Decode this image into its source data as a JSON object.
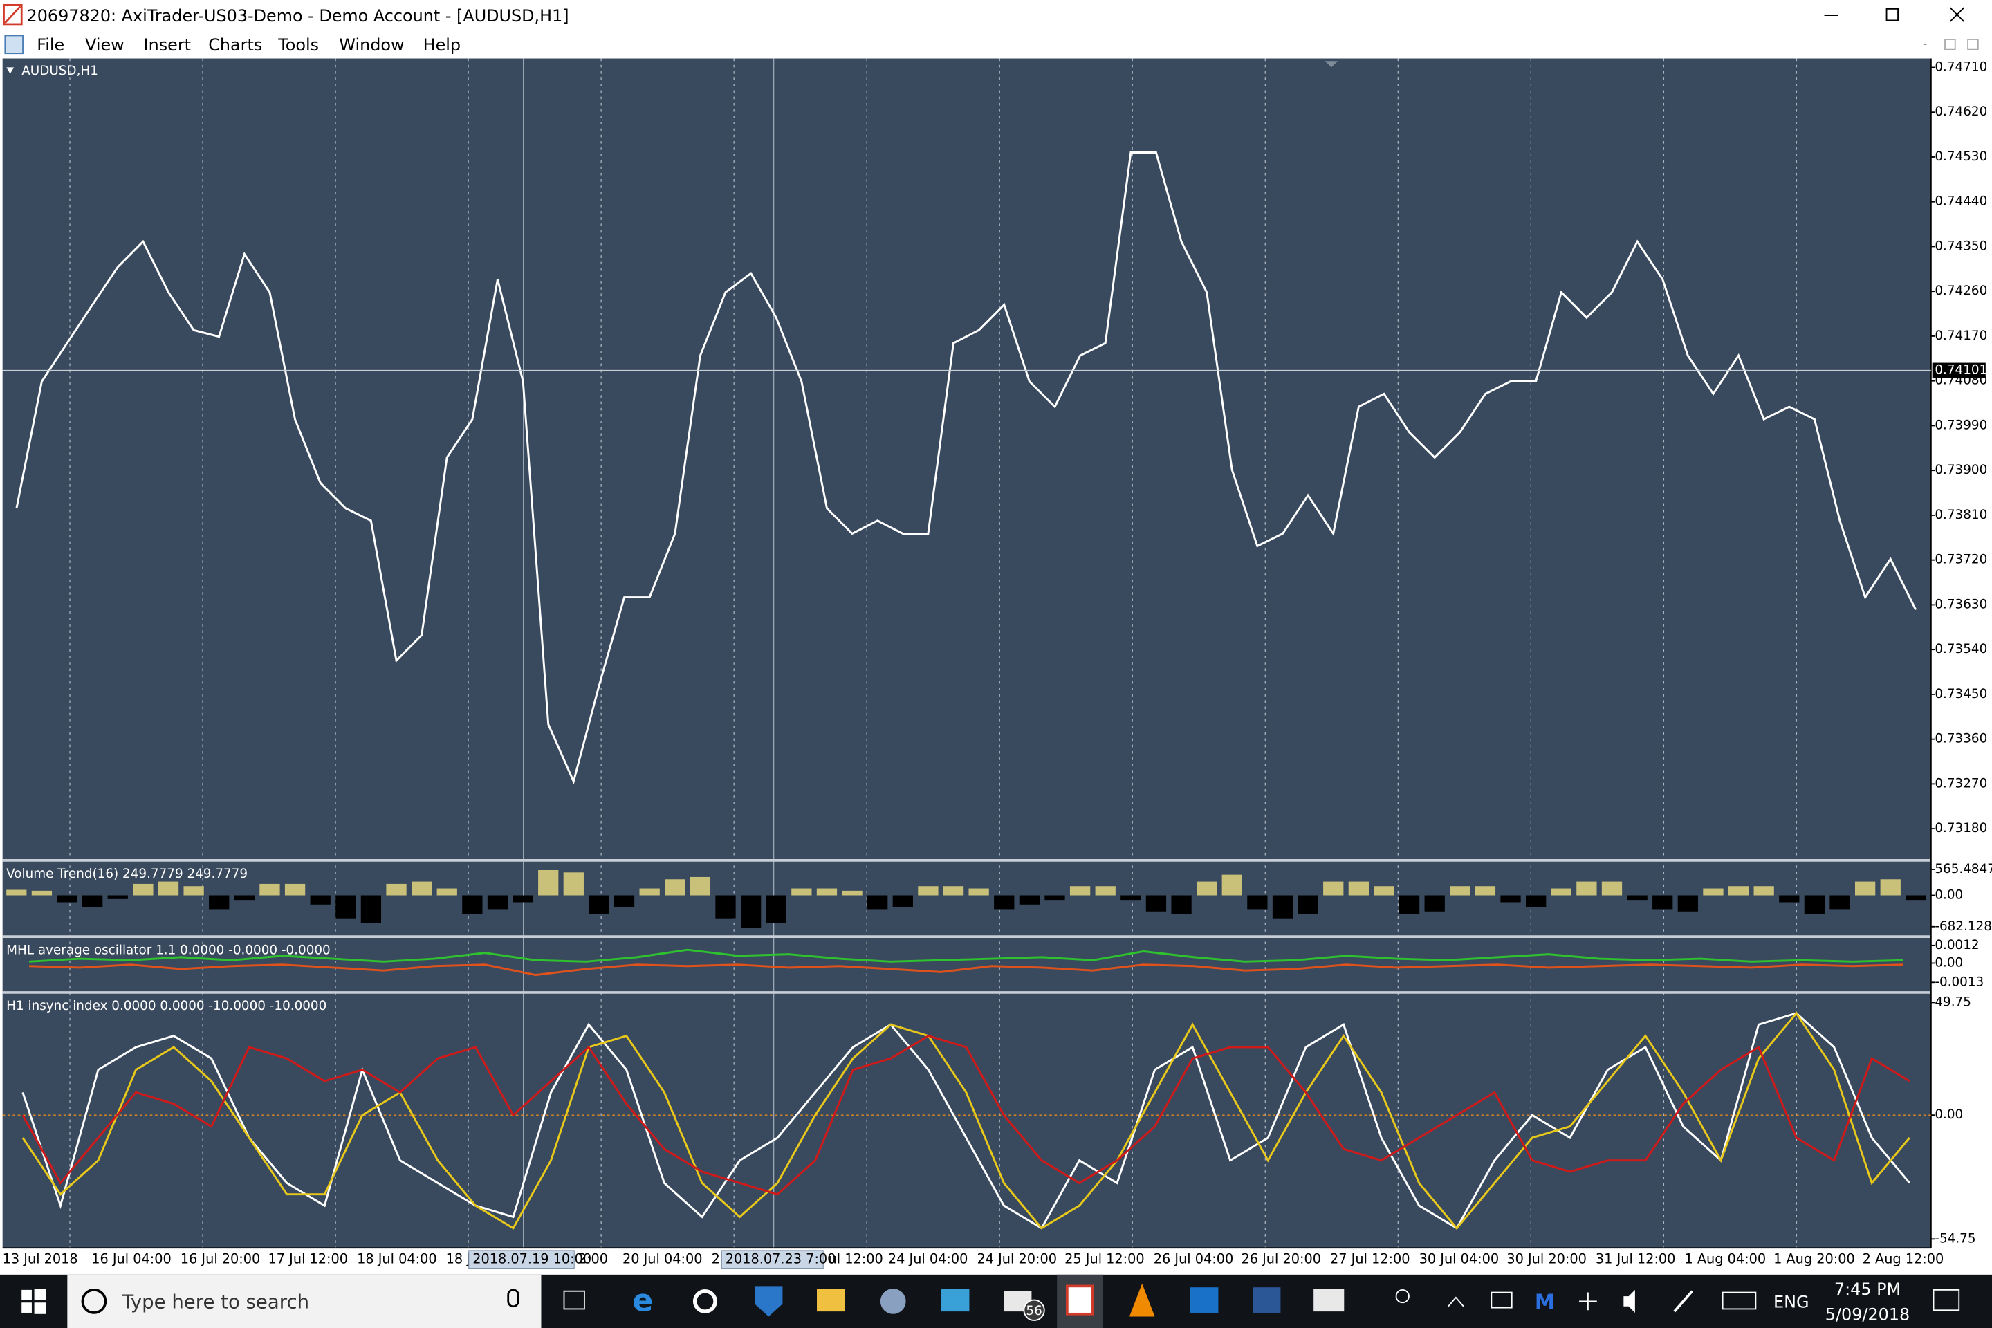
{
  "window": {
    "title": "20697820: AxiTrader-US03-Demo - Demo Account - [AUDUSD,H1]",
    "menu": [
      "File",
      "View",
      "Insert",
      "Charts",
      "Tools",
      "Window",
      "Help"
    ]
  },
  "chart_data": [
    {
      "type": "line",
      "title": "AUDUSD,H1",
      "color": "#ffffff",
      "values": [
        0.73824,
        0.74079,
        0.74156,
        0.74233,
        0.74309,
        0.7436,
        0.74258,
        0.74182,
        0.74169,
        0.74335,
        0.74258,
        0.74003,
        0.73875,
        0.73824,
        0.73799,
        0.73518,
        0.73569,
        0.73926,
        0.74003,
        0.74284,
        0.74079,
        0.7339,
        0.73275,
        0.73467,
        0.73645,
        0.73645,
        0.73773,
        0.74131,
        0.74258,
        0.74296,
        0.74207,
        0.74079,
        0.73824,
        0.73773,
        0.73799,
        0.73773,
        0.73773,
        0.74156,
        0.74182,
        0.74233,
        0.74079,
        0.74028,
        0.74131,
        0.74156,
        0.74539,
        0.74539,
        0.7436,
        0.74258,
        0.73901,
        0.73748,
        0.73773,
        0.7385,
        0.73773,
        0.74028,
        0.74054,
        0.73977,
        0.73926,
        0.73977,
        0.74054,
        0.74079,
        0.74079,
        0.74258,
        0.74207,
        0.74258,
        0.7436,
        0.74284,
        0.74131,
        0.74054,
        0.74131,
        0.74003,
        0.74028,
        0.74003,
        0.73799,
        0.73645,
        0.73722,
        0.7362
      ],
      "ylim": [
        0.73119,
        0.74728
      ],
      "yticks": [
        {
          "value": 0.7471,
          "label": "0.74710"
        },
        {
          "value": 0.7462,
          "label": "0.74620"
        },
        {
          "value": 0.7453,
          "label": "0.74530"
        },
        {
          "value": 0.7444,
          "label": "0.74440"
        },
        {
          "value": 0.7435,
          "label": "0.74350"
        },
        {
          "value": 0.7426,
          "label": "0.74260"
        },
        {
          "value": 0.7417,
          "label": "0.74170"
        },
        {
          "value": 0.7408,
          "label": "0.74080"
        },
        {
          "value": 0.7399,
          "label": "0.73990"
        },
        {
          "value": 0.739,
          "label": "0.73900"
        },
        {
          "value": 0.7381,
          "label": "0.73810"
        },
        {
          "value": 0.7372,
          "label": "0.73720"
        },
        {
          "value": 0.7363,
          "label": "0.73630"
        },
        {
          "value": 0.7354,
          "label": "0.73540"
        },
        {
          "value": 0.7345,
          "label": "0.73450"
        },
        {
          "value": 0.7336,
          "label": "0.73360"
        },
        {
          "value": 0.7327,
          "label": "0.73270"
        },
        {
          "value": 0.7318,
          "label": "0.73180"
        }
      ],
      "current_price": 0.74101
    },
    {
      "type": "bar",
      "title": "Volume Trend(16) 249.7779 249.7779",
      "color": "#c9c07a",
      "negative_color": "#000000",
      "values": [
        120,
        100,
        -150,
        -250,
        -80,
        250,
        300,
        200,
        -300,
        -100,
        250,
        250,
        -200,
        -500,
        -600,
        250,
        300,
        150,
        -400,
        -300,
        -150,
        550,
        500,
        -400,
        -250,
        150,
        350,
        400,
        -500,
        -700,
        -600,
        150,
        150,
        100,
        -300,
        -250,
        200,
        200,
        150,
        -300,
        -200,
        -100,
        200,
        200,
        -100,
        -350,
        -400,
        300,
        450,
        -300,
        -500,
        -400,
        300,
        300,
        200,
        -400,
        -350,
        200,
        200,
        -150,
        -250,
        150,
        300,
        300,
        -100,
        -300,
        -350,
        150,
        200,
        200,
        -150,
        -400,
        -300,
        300,
        350,
        -100
      ],
      "ylim": [
        -870,
        735
      ],
      "yticks": [
        565.4847,
        {
          "value": 0,
          "label": "0.00"
        },
        -682.1288
      ]
    },
    {
      "type": "line",
      "title": "MHL average oscillator 1.1 0.0000 -0.0000 -0.0000",
      "series": [
        {
          "color": "#2ec22e",
          "values": [
            0.0001,
            0.0003,
            0.0002,
            0.0004,
            0.0002,
            0.0005,
            0.0003,
            0.0001,
            0.0003,
            0.0007,
            0.0002,
            0.0001,
            0.0004,
            0.0009,
            0.0005,
            0.0006,
            0.0003,
            0.0001,
            0.0002,
            0.0003,
            0.0004,
            0.0002,
            0.0008,
            0.0004,
            0.0001,
            0.0002,
            0.0005,
            0.0003,
            0.0002,
            0.0004,
            0.0006,
            0.0003,
            0.0002,
            0.0003,
            0.0001,
            0.0002,
            0.0001,
            0.0002
          ]
        },
        {
          "color": "#e0521c",
          "values": [
            -0.0002,
            -0.0003,
            -0.0001,
            -0.0004,
            -0.0002,
            -0.0001,
            -0.0003,
            -0.0005,
            -0.0002,
            -0.0001,
            -0.0008,
            -0.0004,
            -0.0001,
            -0.0002,
            -0.0001,
            -0.0003,
            -0.0002,
            -0.0004,
            -0.0006,
            -0.0002,
            -0.0003,
            -0.0005,
            -0.0001,
            -0.0002,
            -0.0005,
            -0.0004,
            -0.0001,
            -0.0003,
            -0.0002,
            -0.0001,
            -0.0003,
            -0.0002,
            -0.0001,
            -0.0002,
            -0.0003,
            -0.0001,
            -0.0002,
            -0.0001
          ]
        }
      ],
      "ylim": [
        -0.0019,
        0.00171
      ],
      "yticks": [
        0.0012,
        {
          "value": 0,
          "label": "0.00"
        },
        -0.0013
      ]
    },
    {
      "type": "line",
      "title": "H1 insync index 0.0000 0.0000 -10.0000 -10.0000",
      "series": [
        {
          "color": "#ffffff",
          "values": [
            10,
            -40,
            20,
            30,
            35,
            25,
            -10,
            -30,
            -40,
            20,
            -20,
            -30,
            -40,
            -45,
            10,
            40,
            20,
            -30,
            -45,
            -20,
            -10,
            10,
            30,
            40,
            20,
            -10,
            -40,
            -50,
            -20,
            -30,
            20,
            30,
            -20,
            -10,
            30,
            40,
            -10,
            -40,
            -50,
            -20,
            0,
            -10,
            20,
            30,
            -5,
            -20,
            40,
            45,
            30,
            -10,
            -30
          ]
        },
        {
          "color": "#e8c81a",
          "values": [
            -10,
            -35,
            -20,
            20,
            30,
            15,
            -10,
            -35,
            -35,
            0,
            10,
            -20,
            -40,
            -50,
            -20,
            30,
            35,
            10,
            -30,
            -45,
            -30,
            0,
            25,
            40,
            35,
            10,
            -30,
            -50,
            -40,
            -20,
            10,
            40,
            10,
            -20,
            10,
            35,
            10,
            -30,
            -50,
            -30,
            -10,
            -5,
            15,
            35,
            10,
            -20,
            25,
            45,
            20,
            -30,
            -10
          ]
        },
        {
          "color": "#d01a1a",
          "values": [
            0,
            -30,
            -10,
            10,
            5,
            -5,
            30,
            25,
            15,
            20,
            10,
            25,
            30,
            0,
            15,
            30,
            5,
            -15,
            -25,
            -30,
            -35,
            -20,
            20,
            25,
            35,
            30,
            0,
            -20,
            -30,
            -20,
            -5,
            25,
            30,
            30,
            10,
            -15,
            -20,
            -10,
            0,
            10,
            -20,
            -25,
            -20,
            -20,
            5,
            20,
            30,
            -10,
            -20,
            25,
            15
          ]
        }
      ],
      "ylim": [
        -58.7,
        53.6
      ],
      "yticks": [
        49.75,
        {
          "value": 0,
          "label": "0.00"
        },
        -54.75
      ],
      "zero_line": "#e0891c"
    }
  ],
  "x_axis": {
    "labels": [
      "13 Jul 2018",
      "16 Jul 04:00",
      "16 Jul 20:00",
      "17 Jul 12:00",
      "18 Jul 04:00",
      "18 J",
      "2:00",
      "20 Jul 04:00",
      "2",
      "ul 12:00",
      "24 Jul 04:00",
      "24 Jul 20:00",
      "25 Jul 12:00",
      "26 Jul 04:00",
      "26 Jul 20:00",
      "27 Jul 12:00",
      "30 Jul 04:00",
      "30 Jul 20:00",
      "31 Jul 12:00",
      "1 Aug 04:00",
      "1 Aug 20:00",
      "2 Aug 12:00"
    ],
    "crosshair_labels": [
      "2018.07.19 10:00",
      "2018.07.23 7:00"
    ]
  },
  "taskbar": {
    "search": "Type here to search",
    "badge": "56",
    "language": "ENG",
    "time": "7:45 PM",
    "date": "5/09/2018"
  }
}
